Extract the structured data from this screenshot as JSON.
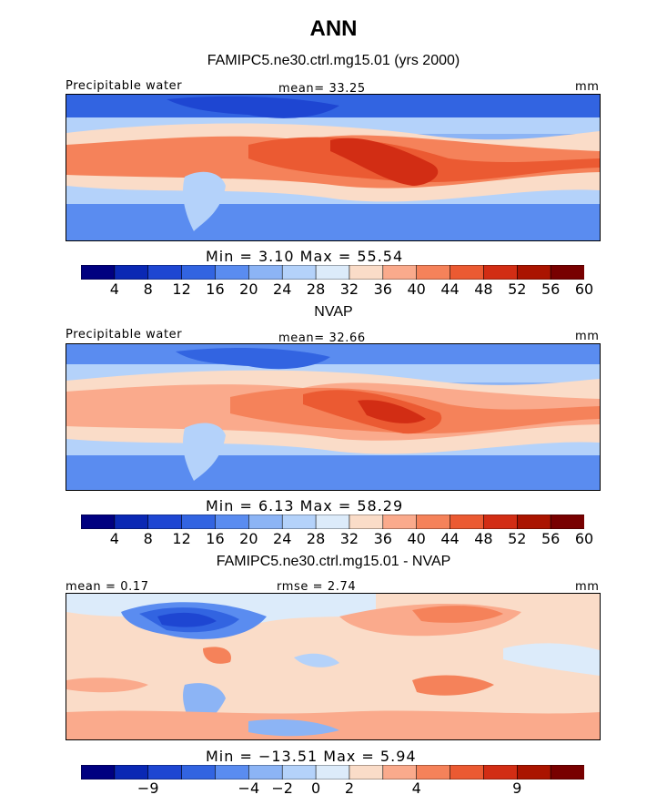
{
  "main_title": "ANN",
  "colors": {
    "full_scale": [
      "#000080",
      "#0a28b4",
      "#1e46d2",
      "#3264e1",
      "#5a8cf0",
      "#8cb4f5",
      "#b4d2fa",
      "#dcebfa",
      "#fadcc8",
      "#faaa8c",
      "#f5825a",
      "#eb5a32",
      "#d22d14",
      "#aa1400",
      "#780000"
    ],
    "diff_scale": [
      "#000080",
      "#0a28b4",
      "#1e46d2",
      "#3264e1",
      "#5a8cf0",
      "#8cb4f5",
      "#b4d2fa",
      "#dcebfa",
      "#fadcc8",
      "#faaa8c",
      "#f5825a",
      "#eb5a32",
      "#d22d14",
      "#aa1400",
      "#780000"
    ]
  },
  "panels": [
    {
      "title": "FAMIPC5.ne30.ctrl.mg15.01 (yrs 2000)",
      "left_label": "Precipitable water",
      "center_label": "mean=  33.25",
      "right_label": "mm",
      "minmax": "Min =    3.10  Max =   55.54",
      "colorbar_ticks": [
        "4",
        "8",
        "12",
        "16",
        "20",
        "24",
        "28",
        "32",
        "36",
        "40",
        "44",
        "48",
        "52",
        "56",
        "60"
      ]
    },
    {
      "title": "NVAP",
      "left_label": "Precipitable water",
      "center_label": "mean=  32.66",
      "right_label": "mm",
      "minmax": "Min =    6.13  Max =   58.29",
      "colorbar_ticks": [
        "4",
        "8",
        "12",
        "16",
        "20",
        "24",
        "28",
        "32",
        "36",
        "40",
        "44",
        "48",
        "52",
        "56",
        "60"
      ]
    },
    {
      "title": "FAMIPC5.ne30.ctrl.mg15.01 - NVAP",
      "left_label": "mean =    0.17",
      "center_label": "rmse =    2.74",
      "right_label": "mm",
      "minmax": "Min = −13.51  Max =    5.94",
      "colorbar_ticks": [
        "−9",
        "−4",
        "−2",
        "0",
        "2",
        "4",
        "9"
      ]
    }
  ],
  "chart_data": [
    {
      "type": "heatmap",
      "title": "FAMIPC5.ne30.ctrl.mg15.01 (yrs 2000)",
      "variable": "Precipitable water",
      "units": "mm",
      "mean": 33.25,
      "min": 3.1,
      "max": 55.54,
      "contour_levels": [
        4,
        8,
        12,
        16,
        20,
        24,
        28,
        32,
        36,
        40,
        44,
        48,
        52,
        56,
        60
      ]
    },
    {
      "type": "heatmap",
      "title": "NVAP",
      "variable": "Precipitable water",
      "units": "mm",
      "mean": 32.66,
      "min": 6.13,
      "max": 58.29,
      "contour_levels": [
        4,
        8,
        12,
        16,
        20,
        24,
        28,
        32,
        36,
        40,
        44,
        48,
        52,
        56,
        60
      ]
    },
    {
      "type": "heatmap",
      "title": "FAMIPC5.ne30.ctrl.mg15.01 - NVAP",
      "units": "mm",
      "mean": 0.17,
      "rmse": 2.74,
      "min": -13.51,
      "max": 5.94,
      "colorbar_tick_labels": [
        -9,
        -4,
        -2,
        0,
        2,
        4,
        9
      ]
    }
  ]
}
